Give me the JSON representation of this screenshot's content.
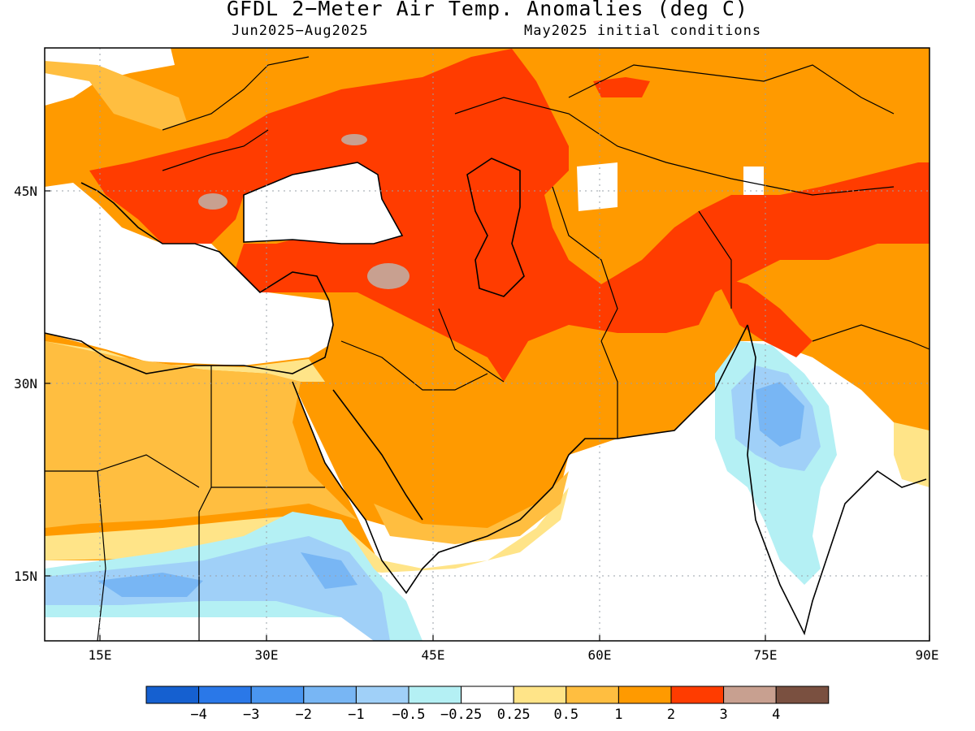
{
  "title": "GFDL 2−Meter Air Temp. Anomalies (deg C)",
  "period": "Jun2025−Aug2025",
  "init": "May2025 initial conditions",
  "lon_ticks": [
    "15E",
    "30E",
    "45E",
    "60E",
    "75E",
    "90E"
  ],
  "lat_ticks": [
    "45N",
    "30N",
    "15N"
  ],
  "legend": {
    "labels": [
      "−4",
      "−3",
      "−2",
      "−1",
      "−0.5",
      "−0.25",
      "0.25",
      "0.5",
      "1",
      "2",
      "3",
      "4"
    ],
    "colors": [
      "#1560d0",
      "#2a78e8",
      "#4a96f0",
      "#78b6f4",
      "#a0d0f8",
      "#b4f0f4",
      "#ffffff",
      "#ffe488",
      "#ffbe40",
      "#ff9a00",
      "#ff3c00",
      "#c8a090",
      "#7a5040"
    ]
  },
  "colors": {
    "neutral": "#ffffff",
    "warm_05": "#ffe488",
    "warm_1": "#ffbe40",
    "warm_2": "#ff9a00",
    "warm_3": "#ff3c00",
    "warm_4": "#c8a090",
    "cool_025": "#b4f0f4",
    "cool_05": "#a0d0f8",
    "cool_1": "#78b6f4"
  }
}
